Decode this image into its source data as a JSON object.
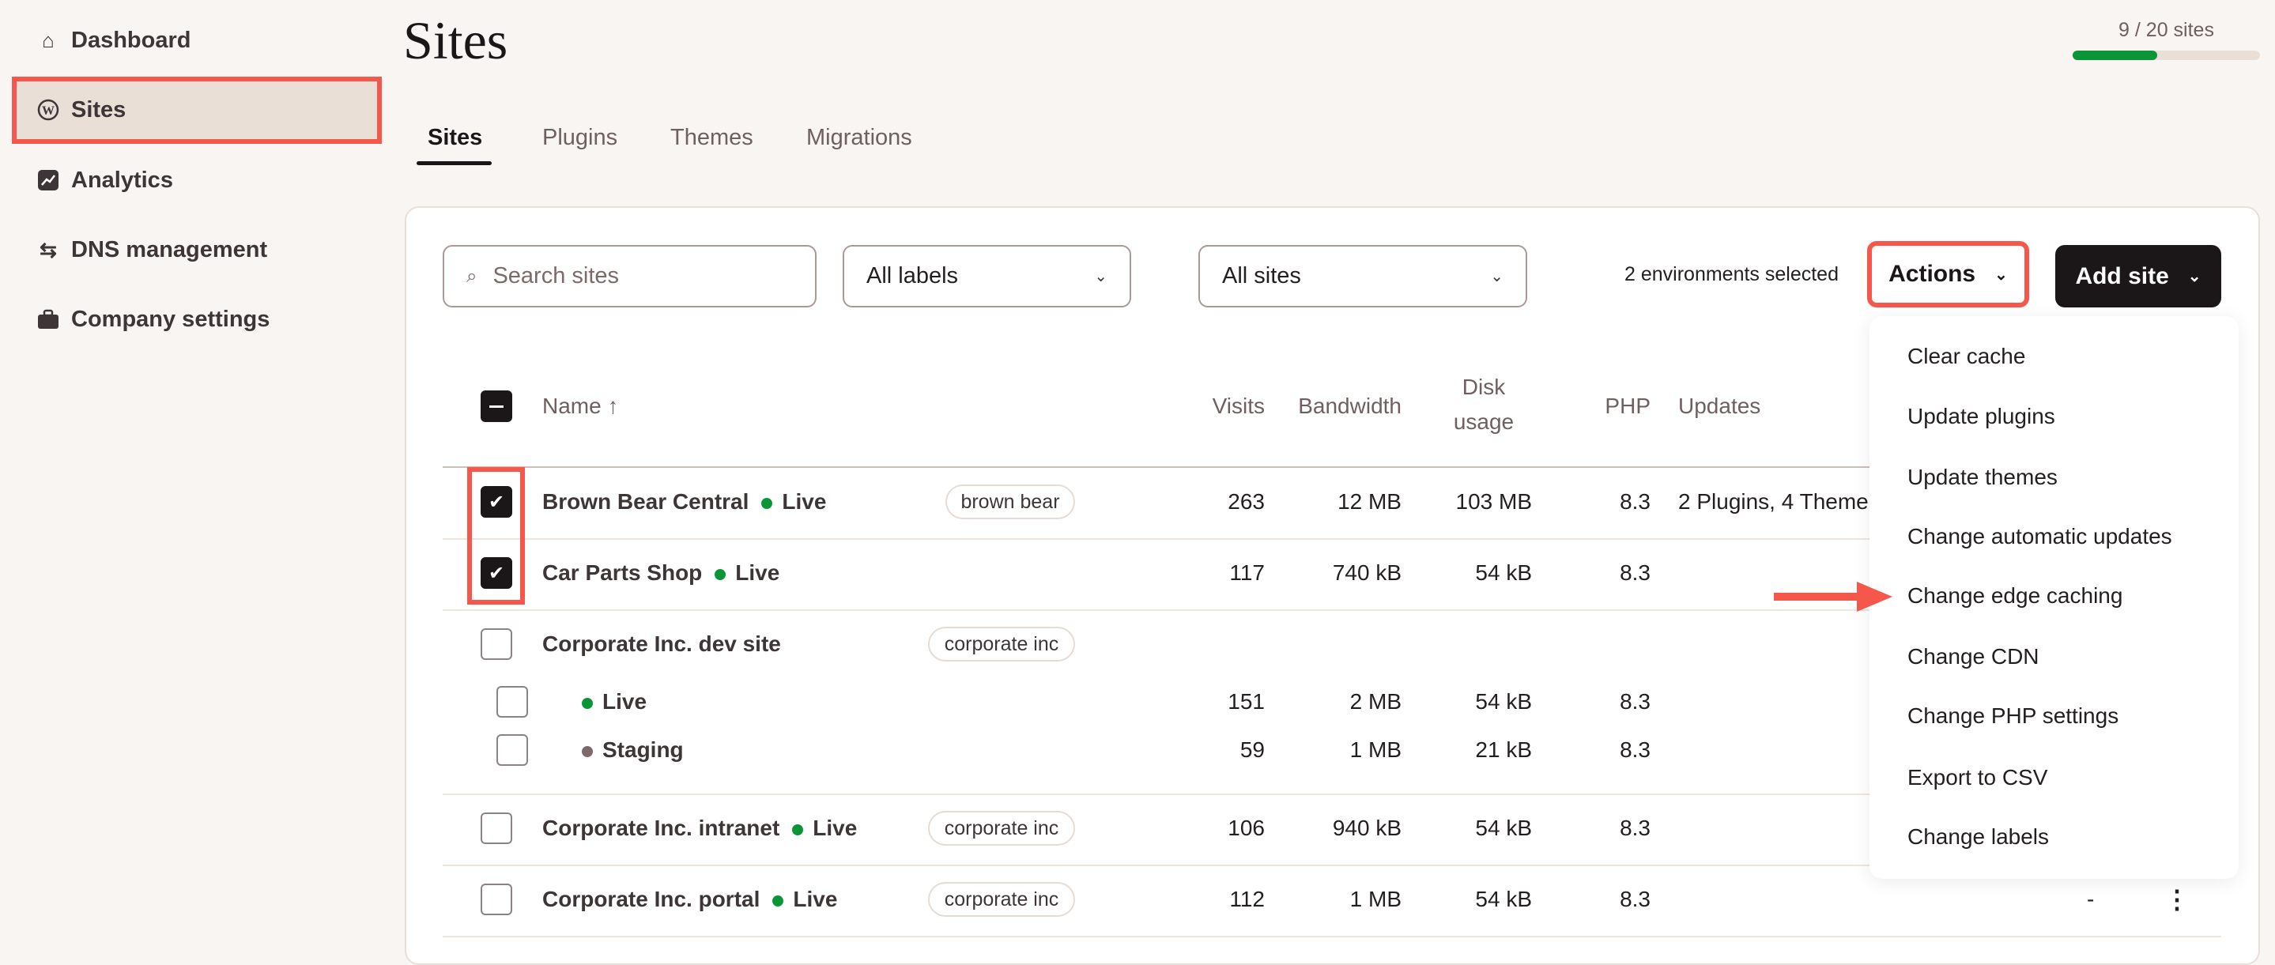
{
  "sidebar": {
    "items": [
      {
        "label": "Dashboard",
        "icon": "home-icon"
      },
      {
        "label": "Sites",
        "icon": "wordpress-icon"
      },
      {
        "label": "Analytics",
        "icon": "analytics-icon"
      },
      {
        "label": "DNS management",
        "icon": "dns-icon"
      },
      {
        "label": "Company settings",
        "icon": "briefcase-icon"
      }
    ]
  },
  "header": {
    "title": "Sites",
    "usage": {
      "label": "9 / 20 sites",
      "fraction": 0.45,
      "color": "#0a9637"
    }
  },
  "tabs": [
    {
      "label": "Sites"
    },
    {
      "label": "Plugins"
    },
    {
      "label": "Themes"
    },
    {
      "label": "Migrations"
    }
  ],
  "toolbar": {
    "search_placeholder": "Search sites",
    "labels_filter": "All labels",
    "sites_filter": "All sites",
    "selection_text": "2 environments selected",
    "actions_label": "Actions",
    "add_site_label": "Add site"
  },
  "table": {
    "columns": {
      "name": "Name ↑",
      "visits": "Visits",
      "bandwidth": "Bandwidth",
      "disk1": "Disk",
      "disk2": "usage",
      "php": "PHP",
      "updates": "Updates"
    },
    "rows": [
      {
        "name": "Brown Bear Central",
        "status": "Live",
        "label": "brown bear",
        "visits": "263",
        "bandwidth": "12 MB",
        "disk": "103 MB",
        "php": "8.3",
        "updates": "2 Plugins, 4 Theme",
        "checked": true
      },
      {
        "name": "Car Parts Shop",
        "status": "Live",
        "visits": "117",
        "bandwidth": "740 kB",
        "disk": "54 kB",
        "php": "8.3",
        "checked": true
      },
      {
        "name": "Corporate Inc. dev site",
        "label": "corporate inc",
        "checked": false,
        "environments": [
          {
            "name": "Live",
            "visits": "151",
            "bandwidth": "2 MB",
            "disk": "54 kB",
            "php": "8.3"
          },
          {
            "name": "Staging",
            "visits": "59",
            "bandwidth": "1 MB",
            "disk": "21 kB",
            "php": "8.3"
          }
        ]
      },
      {
        "name": "Corporate Inc. intranet",
        "status": "Live",
        "label": "corporate inc",
        "visits": "106",
        "bandwidth": "940 kB",
        "disk": "54 kB",
        "php": "8.3",
        "checked": false
      },
      {
        "name": "Corporate Inc. portal",
        "status": "Live",
        "label": "corporate inc",
        "visits": "112",
        "bandwidth": "1 MB",
        "disk": "54 kB",
        "php": "8.3",
        "updates": "-",
        "checked": false
      }
    ]
  },
  "actions_menu": {
    "items": [
      "Clear cache",
      "Update plugins",
      "Update themes",
      "Change automatic updates",
      "Change edge caching",
      "Change CDN",
      "Change PHP settings",
      "Export to CSV",
      "Change labels"
    ]
  },
  "colors": {
    "live": "#0a9637",
    "staging": "#7c6a6b",
    "highlight": "#f5584b"
  }
}
